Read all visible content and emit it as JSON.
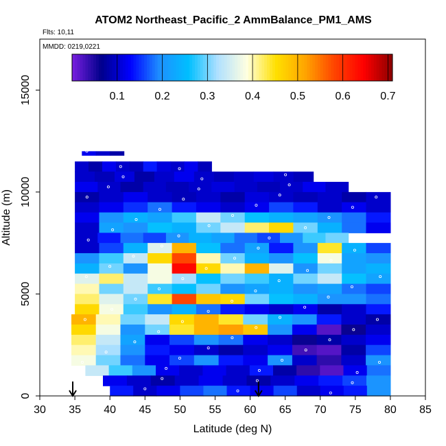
{
  "chart_data": {
    "type": "heatmap",
    "title": "ATOM2 Northeast_Pacific_2 AmmBalance_PM1_AMS",
    "flights_label": "Flts: 10,11",
    "dates_label": "MMDD: 0219,0221",
    "xlabel": "Latitude (deg N)",
    "ylabel": "Altitude (m)",
    "xlim": [
      30,
      85
    ],
    "ylim": [
      0,
      17500
    ],
    "x_ticks": [
      30,
      35,
      40,
      45,
      50,
      55,
      60,
      65,
      70,
      75,
      80,
      85
    ],
    "y_ticks": [
      0,
      5000,
      10000,
      15000
    ],
    "colorbar": {
      "range": [
        0,
        0.71
      ],
      "ticks": [
        0.1,
        0.2,
        0.3,
        0.4,
        0.5,
        0.6,
        0.7
      ],
      "colors": [
        "#7a1fe0",
        "#00008b",
        "#0000ff",
        "#1e8fff",
        "#00bfff",
        "#b0e0ff",
        "#ffffe0",
        "#ffe000",
        "#ffa500",
        "#ff4500",
        "#ff0000",
        "#8b0000"
      ]
    },
    "arrows_latitude": [
      34.7,
      61.2
    ],
    "rows": [
      {
        "alt_bottom": 11800,
        "alt_top": 12000,
        "lat_start": 36,
        "lat_end": 42,
        "values": [
          0.12,
          0.1,
          0.08
        ]
      },
      {
        "alt_bottom": 11000,
        "alt_top": 11500,
        "lat_start": 35,
        "lat_end": 54.5,
        "values": [
          0.1,
          0.08,
          0.12,
          0.1,
          0.09,
          0.14,
          0.11,
          0.1,
          0.12,
          0.09
        ]
      },
      {
        "alt_bottom": 10500,
        "alt_top": 11000,
        "lat_start": 35,
        "lat_end": 69,
        "values": [
          0.1,
          0.09,
          0.11,
          0.08,
          0.1,
          0.12,
          0.1,
          0.09,
          0.1,
          0.11,
          0.1,
          0.09
        ]
      },
      {
        "alt_bottom": 10000,
        "alt_top": 10500,
        "lat_start": 35,
        "lat_end": 74,
        "values": [
          0.12,
          0.1,
          0.08,
          0.1,
          0.09,
          0.1,
          0.11,
          0.1,
          0.09,
          0.1,
          0.12,
          0.1
        ]
      },
      {
        "alt_bottom": 9500,
        "alt_top": 10000,
        "lat_start": 35,
        "lat_end": 80,
        "values": [
          0.08,
          0.1,
          0.12,
          0.1,
          0.09,
          0.1,
          0.08,
          0.11,
          0.1,
          0.09,
          0.1,
          0.08,
          0.1
        ]
      },
      {
        "alt_bottom": 9000,
        "alt_top": 9500,
        "lat_start": 35,
        "lat_end": 80,
        "values": [
          0.1,
          0.12,
          0.15,
          0.18,
          0.14,
          0.12,
          0.1,
          0.12,
          0.16,
          0.14,
          0.1,
          0.12,
          0.1
        ]
      },
      {
        "alt_bottom": 8500,
        "alt_top": 9000,
        "lat_start": 35,
        "lat_end": 80,
        "values": [
          0.12,
          0.2,
          0.24,
          0.22,
          0.28,
          0.34,
          0.3,
          0.26,
          0.24,
          0.22,
          0.2,
          0.18,
          0.14
        ]
      },
      {
        "alt_bottom": 8000,
        "alt_top": 8500,
        "lat_start": 35,
        "lat_end": 80,
        "values": [
          0.1,
          0.22,
          0.2,
          0.26,
          0.24,
          0.3,
          0.34,
          0.42,
          0.46,
          0.3,
          0.24,
          0.18,
          0.12
        ]
      },
      {
        "alt_bottom": 7500,
        "alt_top": 8000,
        "lat_start": 35,
        "lat_end": 74,
        "values": [
          0.1,
          0.14,
          0.18,
          0.16,
          0.2,
          0.24,
          0.22,
          0.18,
          0.16,
          0.2,
          0.28,
          0.3
        ]
      },
      {
        "alt_bottom": 7000,
        "alt_top": 7500,
        "lat_start": 35,
        "lat_end": 80,
        "values": [
          0.1,
          0.16,
          0.24,
          0.36,
          0.5,
          0.26,
          0.18,
          0.22,
          0.14,
          0.2,
          0.44,
          0.24,
          0.16
        ]
      },
      {
        "alt_bottom": 6500,
        "alt_top": 7000,
        "lat_start": 35,
        "lat_end": 80,
        "values": [
          0.2,
          0.28,
          0.34,
          0.46,
          0.58,
          0.4,
          0.3,
          0.24,
          0.2,
          0.26,
          0.38,
          0.22,
          0.2
        ]
      },
      {
        "alt_bottom": 6000,
        "alt_top": 6500,
        "lat_start": 35,
        "lat_end": 80,
        "values": [
          0.24,
          0.3,
          0.2,
          0.38,
          0.64,
          0.46,
          0.4,
          0.5,
          0.36,
          0.2,
          0.3,
          0.22,
          0.24
        ]
      },
      {
        "alt_bottom": 5500,
        "alt_top": 6000,
        "lat_start": 35,
        "lat_end": 80,
        "values": [
          0.36,
          0.42,
          0.34,
          0.38,
          0.32,
          0.26,
          0.3,
          0.28,
          0.24,
          0.3,
          0.34,
          0.26,
          0.22
        ]
      },
      {
        "alt_bottom": 5000,
        "alt_top": 5500,
        "lat_start": 35,
        "lat_end": 80,
        "values": [
          0.4,
          0.3,
          0.34,
          0.28,
          0.26,
          0.3,
          0.2,
          0.22,
          0.24,
          0.2,
          0.22,
          0.18,
          0.16
        ]
      },
      {
        "alt_bottom": 4500,
        "alt_top": 5000,
        "lat_start": 35,
        "lat_end": 80,
        "values": [
          0.42,
          0.36,
          0.3,
          0.44,
          0.58,
          0.48,
          0.46,
          0.3,
          0.26,
          0.24,
          0.2,
          0.2,
          0.18
        ]
      },
      {
        "alt_bottom": 4000,
        "alt_top": 4500,
        "lat_start": 35,
        "lat_end": 80,
        "values": [
          0.46,
          0.38,
          0.28,
          0.2,
          0.24,
          0.18,
          0.14,
          0.12,
          0.1,
          0.12,
          0.08,
          0.1,
          0.14
        ]
      },
      {
        "alt_bottom": 3500,
        "alt_top": 4000,
        "lat_start": 34.5,
        "lat_end": 80,
        "values": [
          0.5,
          0.4,
          0.3,
          0.34,
          0.46,
          0.5,
          0.44,
          0.3,
          0.24,
          0.2,
          0.14,
          0.1,
          0.08
        ]
      },
      {
        "alt_bottom": 3000,
        "alt_top": 3500,
        "lat_start": 34.5,
        "lat_end": 80,
        "values": [
          0.46,
          0.38,
          0.2,
          0.3,
          0.44,
          0.5,
          0.52,
          0.48,
          0.2,
          0.12,
          0.02,
          0.06,
          0.1
        ]
      },
      {
        "alt_bottom": 2500,
        "alt_top": 3000,
        "lat_start": 34.5,
        "lat_end": 80,
        "values": [
          0.42,
          0.34,
          0.22,
          0.12,
          0.16,
          0.2,
          0.18,
          0.12,
          0.1,
          0.06,
          0.08,
          0.1,
          0.12
        ]
      },
      {
        "alt_bottom": 2000,
        "alt_top": 2500,
        "lat_start": 34.5,
        "lat_end": 80,
        "values": [
          0.4,
          0.32,
          0.2,
          0.14,
          0.12,
          0.1,
          0.08,
          0.1,
          0.12,
          0.03,
          0.02,
          0.08,
          0.16
        ]
      },
      {
        "alt_bottom": 1500,
        "alt_top": 2000,
        "lat_start": 34.5,
        "lat_end": 80,
        "values": [
          0.38,
          0.3,
          0.18,
          0.12,
          0.16,
          0.2,
          0.14,
          0.12,
          0.2,
          0.1,
          0.04,
          0.1,
          0.2
        ]
      },
      {
        "alt_bottom": 1000,
        "alt_top": 1500,
        "lat_start": 36.5,
        "lat_end": 80,
        "values": [
          0.34,
          0.28,
          0.2,
          0.12,
          0.1,
          0.12,
          0.1,
          0.14,
          0.08,
          0.04,
          0.02,
          0.12,
          0.18
        ]
      },
      {
        "alt_bottom": 500,
        "alt_top": 1000,
        "lat_start": 39,
        "lat_end": 80,
        "values": [
          0.12,
          0.1,
          0.08,
          0.1,
          0.12,
          0.1,
          0.08,
          0.1,
          0.12,
          0.14,
          0.16,
          0.2
        ]
      },
      {
        "alt_bottom": 0,
        "alt_top": 500,
        "lat_start": 40,
        "lat_end": 80,
        "values": [
          0.14,
          0.1,
          0.12,
          0.16,
          0.18,
          0.14,
          0.12,
          0.16,
          0.1,
          0.12,
          0.14,
          0.2
        ]
      }
    ]
  }
}
